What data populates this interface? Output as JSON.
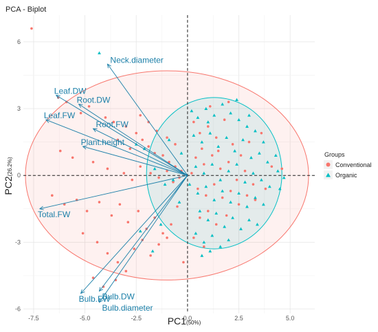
{
  "chart_data": {
    "type": "scatter",
    "title": "PCA - Biplot",
    "xlabel": "PC1",
    "xlabel_pct": "(50%)",
    "ylabel": "PC2",
    "ylabel_pct": "(26.2%)",
    "xlim": [
      -8,
      6.2
    ],
    "ylim": [
      -6.2,
      7.2
    ],
    "xticks": [
      -7.5,
      -5.0,
      -2.5,
      0.0,
      2.5,
      5.0
    ],
    "xtick_labels": [
      "-7.5",
      "-5.0",
      "-2.5",
      "0.0",
      "2.5",
      "5.0"
    ],
    "yticks": [
      -6,
      -3,
      0,
      3,
      6
    ],
    "ytick_labels": [
      "-6",
      "-3",
      "0",
      "3",
      "6"
    ],
    "grid": true,
    "legend": {
      "title": "Groups",
      "placement": "right",
      "entries": [
        {
          "name": "Conventional",
          "color": "#f8766d",
          "shape": "circle"
        },
        {
          "name": "Organic",
          "color": "#00bfc4",
          "shape": "triangle"
        }
      ]
    },
    "ellipses": [
      {
        "group": "Conventional",
        "cx": -1.0,
        "cy": 0.0,
        "rx": 6.9,
        "ry": 4.7,
        "angle": 0,
        "fill": "#f8766d",
        "stroke": "#f8766d"
      },
      {
        "group": "Organic",
        "cx": 1.3,
        "cy": 0.1,
        "rx": 3.3,
        "ry": 3.4,
        "angle": 0,
        "fill": "#00bfc4",
        "stroke": "#00bfc4"
      }
    ],
    "variables": [
      {
        "name": "Neck.diameter",
        "x": -3.9,
        "y": 5.0
      },
      {
        "name": "Leaf.DW",
        "x": -6.4,
        "y": 3.6
      },
      {
        "name": "Root.DW",
        "x": -5.3,
        "y": 3.2
      },
      {
        "name": "Leaf.FW",
        "x": -6.9,
        "y": 2.5
      },
      {
        "name": "Root.FW",
        "x": -4.6,
        "y": 2.1
      },
      {
        "name": "Plant.height",
        "x": -5.1,
        "y": 1.3
      },
      {
        "name": "Total.FW",
        "x": -7.2,
        "y": -1.5
      },
      {
        "name": "Bulb.DW",
        "x": -4.3,
        "y": -5.2
      },
      {
        "name": "Bulb.FW",
        "x": -5.2,
        "y": -5.3
      },
      {
        "name": "Bulb.diameter",
        "x": -4.3,
        "y": -5.7
      }
    ],
    "series": [
      {
        "name": "Conventional",
        "color": "#f8766d",
        "shape": "circle",
        "points": [
          [
            -7.6,
            6.6
          ],
          [
            -6.3,
            3.5
          ],
          [
            -5.9,
            3.3
          ],
          [
            -5.2,
            2.8
          ],
          [
            -4.8,
            3.1
          ],
          [
            -4.0,
            2.6
          ],
          [
            -3.6,
            2.4
          ],
          [
            -3.0,
            2.2
          ],
          [
            -2.5,
            1.9
          ],
          [
            -2.2,
            1.6
          ],
          [
            -1.9,
            1.3
          ],
          [
            -1.6,
            1.0
          ],
          [
            -1.2,
            0.9
          ],
          [
            -0.9,
            0.6
          ],
          [
            -0.6,
            0.4
          ],
          [
            -0.3,
            0.2
          ],
          [
            -6.2,
            1.1
          ],
          [
            -5.6,
            0.8
          ],
          [
            -4.6,
            0.6
          ],
          [
            -3.9,
            0.3
          ],
          [
            -3.1,
            0.1
          ],
          [
            -2.7,
            -0.2
          ],
          [
            -2.3,
            0.4
          ],
          [
            -1.8,
            0.1
          ],
          [
            -1.4,
            -0.1
          ],
          [
            -1.0,
            0.2
          ],
          [
            -0.7,
            -0.3
          ],
          [
            -0.4,
            -0.1
          ],
          [
            -6.6,
            -0.9
          ],
          [
            -6.0,
            -1.3
          ],
          [
            -5.4,
            -1.1
          ],
          [
            -4.9,
            -1.6
          ],
          [
            -4.3,
            -1.2
          ],
          [
            -3.7,
            -1.8
          ],
          [
            -3.3,
            -1.3
          ],
          [
            -2.9,
            -2.1
          ],
          [
            -2.4,
            -1.6
          ],
          [
            -2.0,
            -2.4
          ],
          [
            -1.6,
            -1.9
          ],
          [
            -1.2,
            -2.6
          ],
          [
            -0.8,
            -2.2
          ],
          [
            -0.5,
            -1.4
          ],
          [
            -5.1,
            -2.6
          ],
          [
            -4.4,
            -3.0
          ],
          [
            -3.9,
            -3.5
          ],
          [
            -3.4,
            -3.9
          ],
          [
            -3.0,
            -4.3
          ],
          [
            -2.6,
            -3.3
          ],
          [
            -2.2,
            -2.9
          ],
          [
            -1.8,
            -3.6
          ],
          [
            -1.4,
            -3.1
          ],
          [
            -1.0,
            -2.8
          ],
          [
            -4.6,
            -4.6
          ],
          [
            -4.1,
            -5.0
          ],
          [
            -3.5,
            -4.7
          ],
          [
            -2.3,
            2.7
          ],
          [
            -1.9,
            2.4
          ],
          [
            -1.5,
            2.0
          ],
          [
            -1.0,
            1.7
          ],
          [
            -0.6,
            1.4
          ],
          [
            -3.4,
            1.6
          ],
          [
            -2.8,
            1.2
          ],
          [
            0.3,
            2.4
          ],
          [
            0.6,
            1.9
          ],
          [
            1.0,
            2.2
          ],
          [
            1.4,
            1.7
          ],
          [
            1.8,
            2.5
          ],
          [
            2.2,
            1.4
          ],
          [
            2.6,
            0.9
          ],
          [
            3.0,
            1.5
          ],
          [
            0.4,
            0.8
          ],
          [
            0.8,
            0.5
          ],
          [
            1.2,
            0.9
          ],
          [
            1.6,
            0.3
          ],
          [
            2.0,
            0.6
          ],
          [
            2.4,
            -0.2
          ],
          [
            2.8,
            0.2
          ],
          [
            3.2,
            -0.4
          ],
          [
            0.5,
            -0.6
          ],
          [
            0.9,
            -0.9
          ],
          [
            1.3,
            -0.4
          ],
          [
            1.7,
            -1.0
          ],
          [
            2.1,
            -0.7
          ],
          [
            2.5,
            -1.3
          ],
          [
            2.9,
            -0.9
          ],
          [
            3.3,
            -1.1
          ],
          [
            0.6,
            -1.9
          ],
          [
            1.0,
            -1.6
          ],
          [
            1.4,
            -2.2
          ],
          [
            1.9,
            -1.8
          ],
          [
            0.3,
            -2.8
          ],
          [
            0.8,
            -3.2
          ],
          [
            -0.2,
            -3.9
          ],
          [
            4.1,
            0.4
          ],
          [
            4.6,
            0.3
          ],
          [
            3.6,
            1.9
          ],
          [
            1.1,
            3.1
          ],
          [
            2.0,
            3.3
          ],
          [
            3.8,
            -0.6
          ],
          [
            0.2,
            0.1
          ],
          [
            0.7,
            1.2
          ],
          [
            1.5,
            1.1
          ]
        ]
      },
      {
        "name": "Organic",
        "color": "#00bfc4",
        "shape": "triangle",
        "points": [
          [
            -4.3,
            5.5
          ],
          [
            -2.5,
            1.4
          ],
          [
            -2.1,
            1.2
          ],
          [
            -1.6,
            0.3
          ],
          [
            -1.1,
            -0.4
          ],
          [
            -2.3,
            -2.5
          ],
          [
            -1.7,
            -3.4
          ],
          [
            -1.3,
            -2.2
          ],
          [
            -0.7,
            -0.2
          ],
          [
            -0.3,
            1.0
          ],
          [
            -0.4,
            -1.2
          ],
          [
            -0.9,
            1.6
          ],
          [
            0.2,
            2.9
          ],
          [
            0.5,
            2.6
          ],
          [
            0.9,
            3.0
          ],
          [
            1.3,
            2.7
          ],
          [
            1.7,
            3.2
          ],
          [
            2.1,
            2.8
          ],
          [
            2.5,
            2.5
          ],
          [
            2.9,
            2.2
          ],
          [
            3.3,
            2.0
          ],
          [
            3.7,
            1.5
          ],
          [
            0.3,
            1.8
          ],
          [
            0.7,
            1.5
          ],
          [
            1.1,
            1.9
          ],
          [
            1.5,
            1.3
          ],
          [
            1.9,
            1.7
          ],
          [
            2.3,
            1.1
          ],
          [
            2.7,
            1.6
          ],
          [
            3.1,
            0.8
          ],
          [
            3.5,
            1.0
          ],
          [
            3.9,
            0.6
          ],
          [
            4.3,
            0.9
          ],
          [
            0.4,
            0.4
          ],
          [
            0.8,
            0.1
          ],
          [
            1.2,
            0.5
          ],
          [
            1.6,
            -0.2
          ],
          [
            2.0,
            0.2
          ],
          [
            2.4,
            0.5
          ],
          [
            2.8,
            -0.3
          ],
          [
            3.2,
            0.1
          ],
          [
            3.6,
            -0.2
          ],
          [
            4.0,
            -0.5
          ],
          [
            4.4,
            0.2
          ],
          [
            0.5,
            -0.8
          ],
          [
            0.9,
            -0.5
          ],
          [
            1.3,
            -1.1
          ],
          [
            1.7,
            -0.7
          ],
          [
            2.1,
            -1.2
          ],
          [
            2.5,
            -0.8
          ],
          [
            2.9,
            -1.4
          ],
          [
            3.3,
            -1.0
          ],
          [
            3.7,
            -1.3
          ],
          [
            0.6,
            -1.6
          ],
          [
            1.0,
            -2.0
          ],
          [
            1.4,
            -1.7
          ],
          [
            1.8,
            -2.3
          ],
          [
            2.2,
            -1.9
          ],
          [
            2.6,
            -2.4
          ],
          [
            3.0,
            -2.0
          ],
          [
            0.4,
            -2.6
          ],
          [
            0.8,
            -3.0
          ],
          [
            1.2,
            -2.7
          ],
          [
            1.6,
            -3.2
          ],
          [
            2.0,
            -2.9
          ],
          [
            0.7,
            -3.6
          ],
          [
            1.1,
            -3.4
          ],
          [
            4.7,
            -0.1
          ],
          [
            4.5,
            -0.6
          ],
          [
            3.4,
            -2.2
          ],
          [
            0.1,
            -0.4
          ],
          [
            2.4,
            3.4
          ],
          [
            1.0,
            2.4
          ],
          [
            3.0,
            2.7
          ]
        ]
      }
    ]
  }
}
